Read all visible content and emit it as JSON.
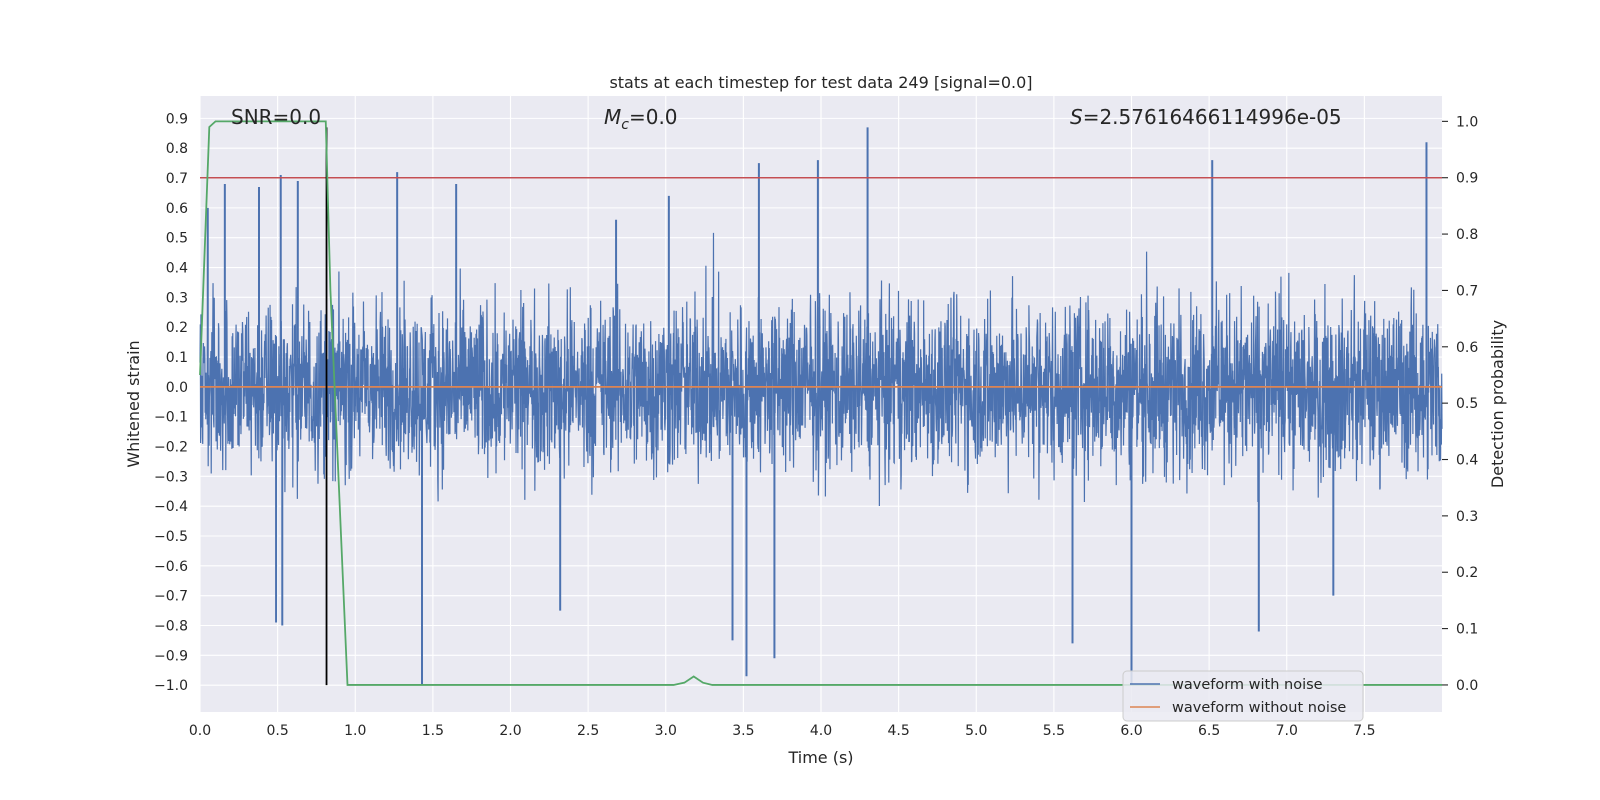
{
  "chart_data": {
    "type": "line",
    "title": "stats at each timestep for test data 249 [signal=0.0]",
    "xlabel": "Time (s)",
    "ylabel": "Whitened strain",
    "y2label": "Detection probability",
    "xlim": [
      0.0,
      8.0
    ],
    "ylim": [
      -1.09,
      0.975
    ],
    "y2lim": [
      -0.048,
      1.045
    ],
    "xticks": [
      "0.0",
      "0.5",
      "1.0",
      "1.5",
      "2.0",
      "2.5",
      "3.0",
      "3.5",
      "4.0",
      "4.5",
      "5.0",
      "5.5",
      "6.0",
      "6.5",
      "7.0",
      "7.5"
    ],
    "yticks": [
      "0.9",
      "0.8",
      "0.7",
      "0.6",
      "0.5",
      "0.4",
      "0.3",
      "0.2",
      "0.1",
      "0.0",
      "-0.1",
      "-0.2",
      "-0.3",
      "-0.4",
      "-0.5",
      "-0.6",
      "-0.7",
      "-0.8",
      "-0.9",
      "-1.0"
    ],
    "y2ticks": [
      "1.0",
      "0.9",
      "0.8",
      "0.7",
      "0.6",
      "0.5",
      "0.4",
      "0.3",
      "0.2",
      "0.1",
      "0.0"
    ],
    "grid": true,
    "legend_position": "lower right",
    "annotations": {
      "snr": "SNR=0.0",
      "mc_symbol": "M",
      "mc_sub": "c",
      "mc_value": "=0.0",
      "s_symbol": "S",
      "s_value": "=2.57616466114996e-05"
    },
    "series": [
      {
        "name": "waveform with noise",
        "color": "#4c72b0",
        "axis": "left",
        "description_kind": "noise",
        "envelope": {
          "typical_high": 0.4,
          "typical_low": -0.4
        },
        "peaks": [
          [
            0.05,
            0.6
          ],
          [
            0.16,
            0.68
          ],
          [
            0.38,
            0.67
          ],
          [
            0.52,
            0.71
          ],
          [
            0.63,
            0.69
          ],
          [
            1.27,
            0.72
          ],
          [
            1.65,
            0.68
          ],
          [
            2.68,
            0.56
          ],
          [
            3.02,
            0.64
          ],
          [
            3.6,
            0.75
          ],
          [
            3.98,
            0.76
          ],
          [
            4.3,
            0.87
          ],
          [
            6.52,
            0.76
          ],
          [
            7.9,
            0.82
          ],
          [
            0.49,
            -0.79
          ],
          [
            0.53,
            -0.8
          ],
          [
            1.43,
            -1.0
          ],
          [
            2.32,
            -0.75
          ],
          [
            3.43,
            -0.85
          ],
          [
            3.52,
            -0.97
          ],
          [
            3.7,
            -0.91
          ],
          [
            5.62,
            -0.86
          ],
          [
            6.0,
            -1.0
          ],
          [
            6.82,
            -0.82
          ],
          [
            7.3,
            -0.7
          ]
        ]
      },
      {
        "name": "waveform without noise",
        "color": "#dd8452",
        "axis": "left",
        "x": [
          0.0,
          8.0
        ],
        "y": [
          0.0,
          0.0
        ]
      },
      {
        "color": "#55a868",
        "axis": "right",
        "x": [
          0.0,
          0.06,
          0.1,
          0.5,
          0.81,
          0.84,
          0.95,
          3.05,
          3.12,
          3.18,
          3.24,
          3.3,
          8.0
        ],
        "y": [
          0.55,
          0.99,
          1.0,
          1.0,
          1.0,
          0.7,
          0.0,
          0.0,
          0.004,
          0.015,
          0.004,
          0.0,
          0.0
        ]
      }
    ],
    "hlines": [
      {
        "axis": "right",
        "y": 0.9,
        "color": "#c44e52"
      }
    ],
    "vlines": [
      {
        "x": 0.815,
        "y_from": -1.0,
        "y_to": 0.87,
        "color": "#000000"
      }
    ]
  }
}
